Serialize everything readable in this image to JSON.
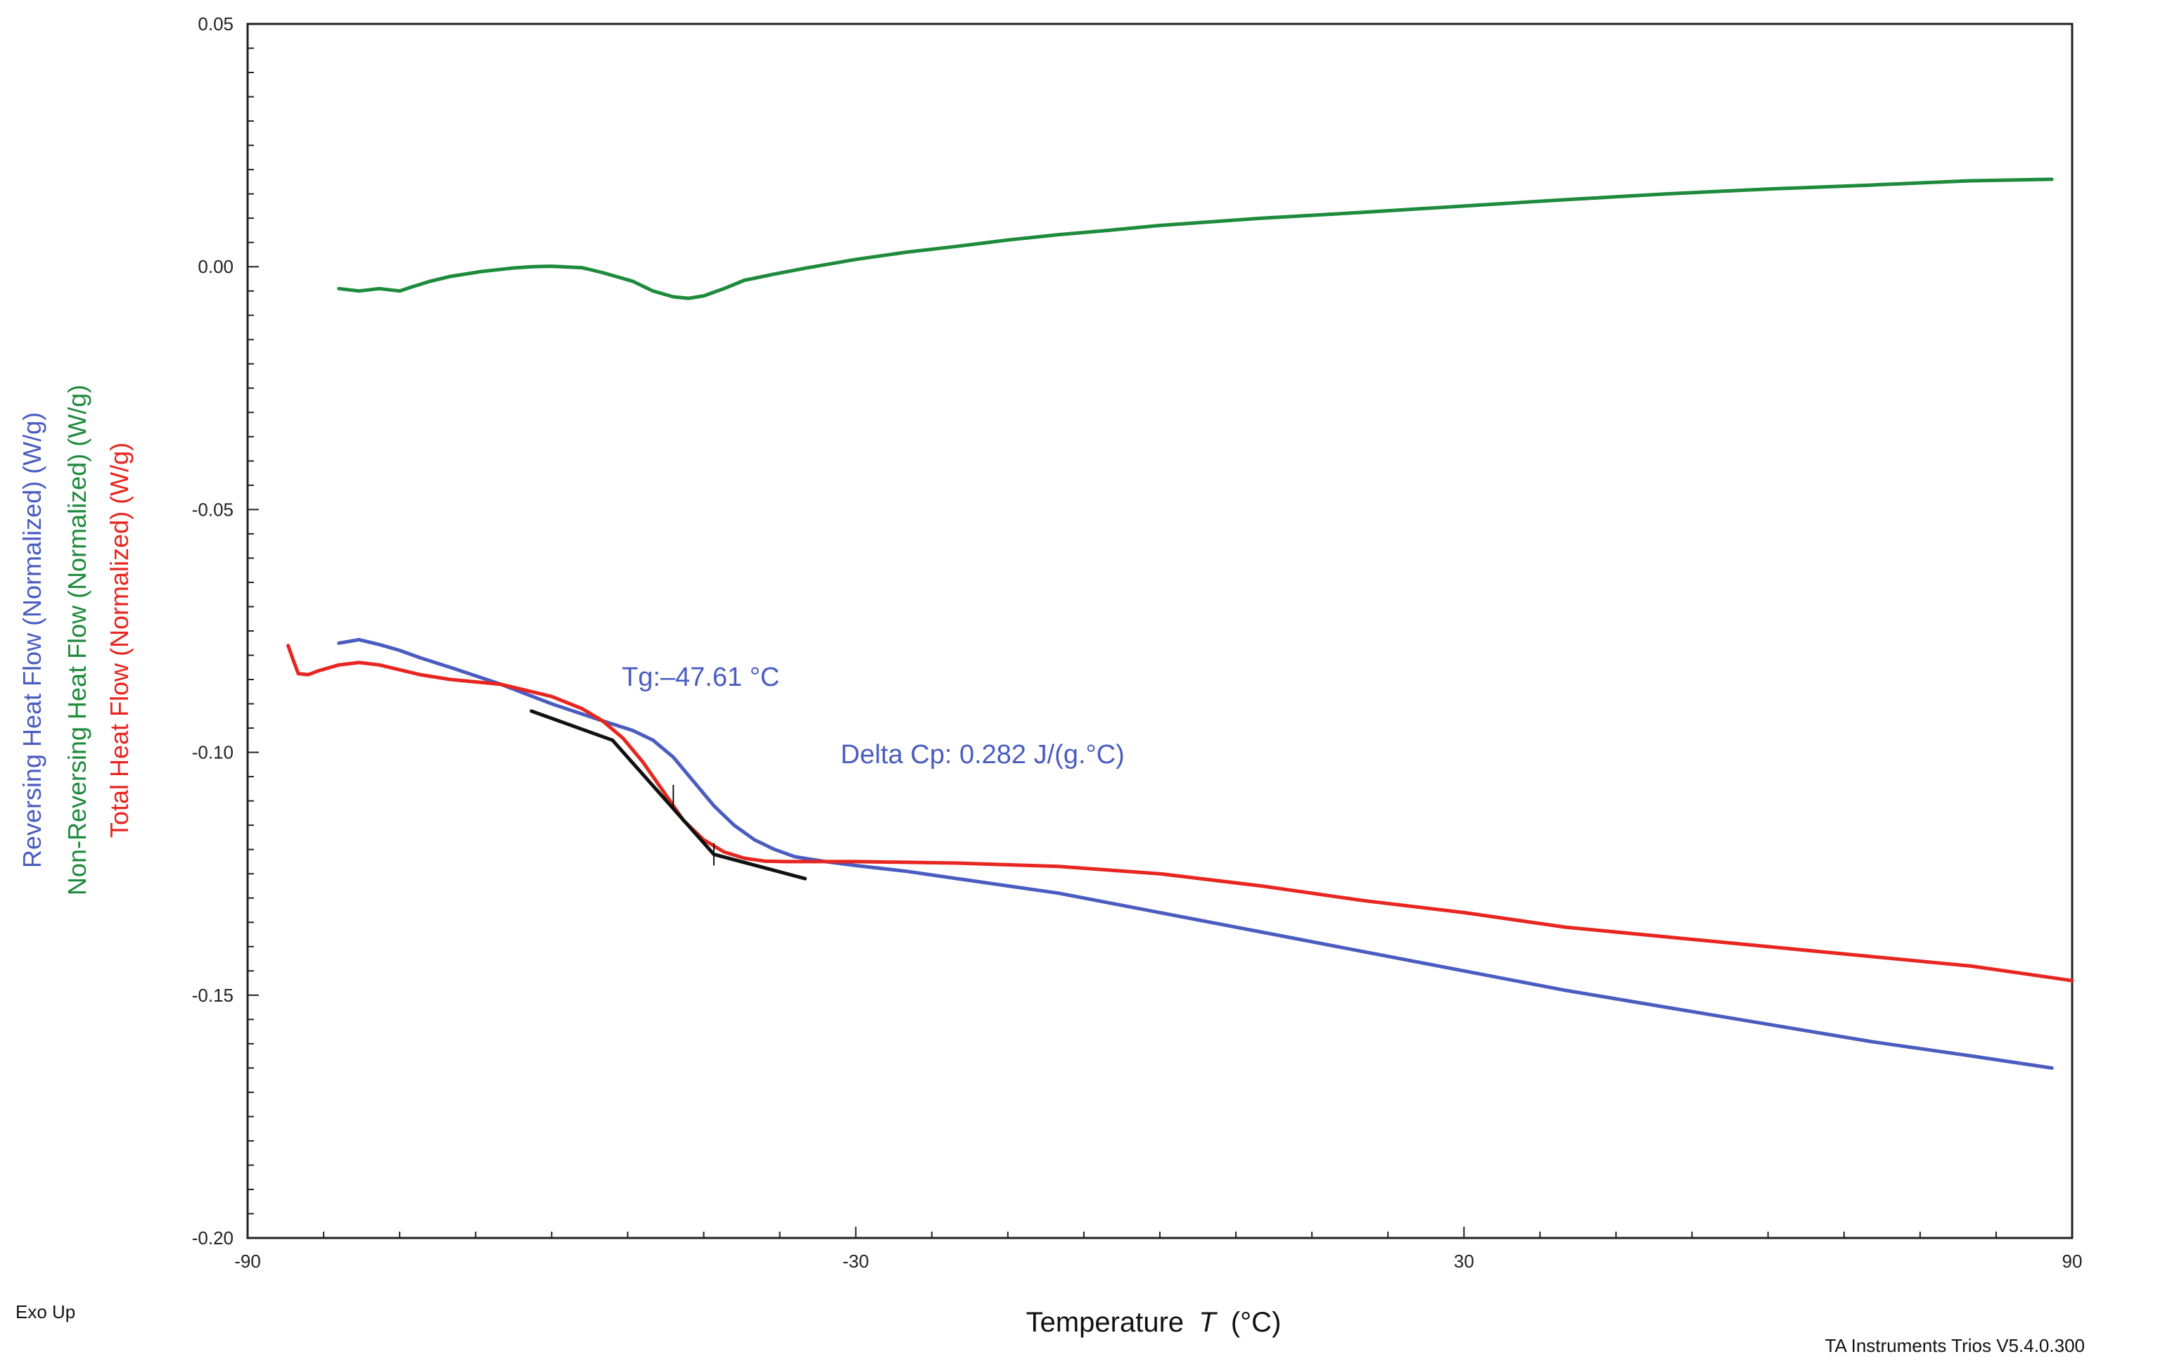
{
  "chart_data": {
    "type": "line",
    "title": "",
    "xlabel": "Temperature",
    "xlabel_symbol": "T",
    "xlabel_unit": "(°C)",
    "xlim": [
      -90,
      90
    ],
    "ylim": [
      -0.2,
      0.05
    ],
    "xticks": [
      -90,
      -30,
      30,
      90
    ],
    "xtick_labels": [
      "-90",
      "-30",
      "30",
      "90"
    ],
    "yticks": [
      0.05,
      0.0,
      -0.05,
      -0.1,
      -0.15,
      -0.2
    ],
    "ytick_labels": [
      "0.05",
      "0.00",
      "-0.05",
      "-0.10",
      "-0.15",
      "-0.20"
    ],
    "ylabels": [
      {
        "text": "Reversing Heat Flow (Normalized)  (W/g)",
        "color": "#4a5cc0"
      },
      {
        "text": "Non-Reversing Heat Flow (Normalized)  (W/g)",
        "color": "#1e8a3c"
      },
      {
        "text": "Total Heat Flow (Normalized)  (W/g)",
        "color": "#e8251f"
      }
    ],
    "series": [
      {
        "name": "Non-Reversing Heat Flow (Normalized)",
        "color": "#1e8a3c",
        "x": [
          -81,
          -79,
          -77,
          -75,
          -74,
          -72,
          -70,
          -67,
          -64,
          -62,
          -60,
          -57,
          -55,
          -52,
          -50,
          -48,
          -46.5,
          -45,
          -43,
          -41,
          -38,
          -35,
          -30,
          -25,
          -20,
          -15,
          -10,
          -5,
          0,
          10,
          20,
          30,
          40,
          50,
          60,
          70,
          80,
          88
        ],
        "values": [
          -0.0045,
          -0.005,
          -0.0045,
          -0.005,
          -0.0043,
          -0.003,
          -0.002,
          -0.001,
          -0.0003,
          0.0,
          0.0001,
          -0.0002,
          -0.0012,
          -0.003,
          -0.005,
          -0.0062,
          -0.0065,
          -0.006,
          -0.0045,
          -0.0028,
          -0.0015,
          -0.0003,
          0.0015,
          0.003,
          0.0042,
          0.0055,
          0.0066,
          0.0075,
          0.0085,
          0.01,
          0.0112,
          0.0125,
          0.0138,
          0.015,
          0.016,
          0.0168,
          0.0177,
          0.018
        ]
      },
      {
        "name": "Reversing Heat Flow (Normalized)",
        "color": "#4a5cc0",
        "x": [
          -81,
          -79,
          -77,
          -75,
          -73,
          -70,
          -65,
          -60,
          -55,
          -52,
          -50,
          -48,
          -46,
          -44,
          -42,
          -40,
          -38,
          -36,
          -33,
          -30,
          -25,
          -20,
          -10,
          0,
          10,
          20,
          30,
          40,
          50,
          60,
          70,
          80,
          88
        ],
        "values": [
          -0.0775,
          -0.0768,
          -0.0778,
          -0.079,
          -0.0805,
          -0.0825,
          -0.086,
          -0.09,
          -0.0935,
          -0.0955,
          -0.0975,
          -0.101,
          -0.106,
          -0.111,
          -0.115,
          -0.118,
          -0.12,
          -0.1215,
          -0.1225,
          -0.1233,
          -0.1245,
          -0.126,
          -0.129,
          -0.133,
          -0.137,
          -0.141,
          -0.145,
          -0.149,
          -0.1525,
          -0.156,
          -0.1595,
          -0.1625,
          -0.165
        ]
      },
      {
        "name": "Total Heat Flow (Normalized)",
        "color": "#e8251f",
        "x": [
          -86,
          -85.5,
          -85,
          -84,
          -83,
          -81,
          -79,
          -77,
          -75,
          -73,
          -70,
          -65,
          -60,
          -57,
          -55,
          -53,
          -51,
          -49,
          -47,
          -45,
          -43,
          -41,
          -39,
          -37,
          -34,
          -30,
          -20,
          -10,
          0,
          10,
          20,
          30,
          40,
          50,
          60,
          70,
          80,
          90
        ],
        "values": [
          -0.078,
          -0.081,
          -0.0838,
          -0.084,
          -0.0832,
          -0.082,
          -0.0815,
          -0.082,
          -0.083,
          -0.084,
          -0.085,
          -0.086,
          -0.0885,
          -0.091,
          -0.0935,
          -0.097,
          -0.102,
          -0.108,
          -0.114,
          -0.118,
          -0.1205,
          -0.1218,
          -0.1224,
          -0.1225,
          -0.1225,
          -0.1225,
          -0.1228,
          -0.1235,
          -0.125,
          -0.1275,
          -0.1305,
          -0.133,
          -0.136,
          -0.138,
          -0.14,
          -0.142,
          -0.144,
          -0.147
        ]
      },
      {
        "name": "Tg construction",
        "color": "#111111",
        "x": [
          -62,
          -54,
          -44,
          -35
        ],
        "values": [
          -0.0915,
          -0.0975,
          -0.121,
          -0.126
        ]
      }
    ],
    "construction_ticks": [
      {
        "x": -44,
        "y": -0.121
      },
      {
        "x": -48,
        "y": -0.109
      }
    ],
    "annotations": {
      "tg": "Tg:–47.61 °C",
      "delta_cp": "Delta Cp: 0.282 J/(g.°C)"
    }
  },
  "footer": {
    "exo_up": "Exo Up",
    "software": "TA Instruments Trios V5.4.0.300"
  }
}
